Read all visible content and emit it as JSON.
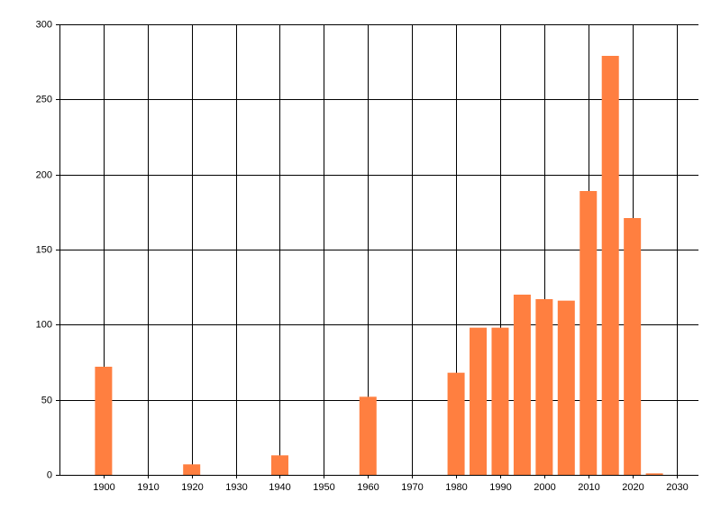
{
  "chart_data": {
    "type": "bar",
    "x": [
      1900,
      1920,
      1940,
      1960,
      1980,
      1985,
      1990,
      1995,
      2000,
      2005,
      2010,
      2015,
      2020,
      2025
    ],
    "values": [
      72,
      7,
      13,
      52,
      68,
      98,
      98,
      120,
      117,
      116,
      189,
      279,
      171,
      1
    ],
    "color": "#ff7f40",
    "xlim": [
      1890,
      2035
    ],
    "xticks": [
      1900,
      1910,
      1920,
      1930,
      1940,
      1950,
      1960,
      1970,
      1980,
      1990,
      2000,
      2010,
      2020,
      2030
    ],
    "ylim": [
      0,
      300
    ],
    "yticks": [
      0,
      50,
      100,
      150,
      200,
      250,
      300
    ],
    "grid": true
  }
}
